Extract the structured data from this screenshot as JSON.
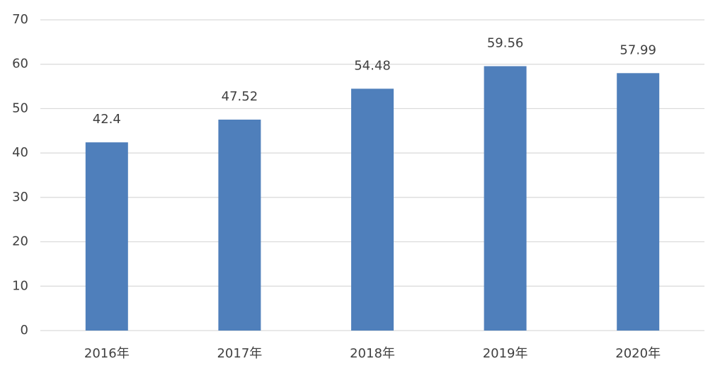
{
  "chart_data": {
    "type": "bar",
    "categories": [
      "2016年",
      "2017年",
      "2018年",
      "2019年",
      "2020年"
    ],
    "values": [
      42.4,
      47.52,
      54.48,
      59.56,
      57.99
    ],
    "color": "#4f7fbb",
    "ylim": [
      0,
      70
    ],
    "yticks": [
      0,
      10,
      20,
      30,
      40,
      50,
      60,
      70
    ],
    "grid": true
  }
}
